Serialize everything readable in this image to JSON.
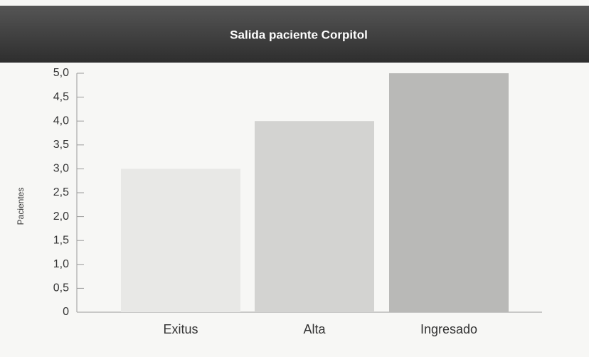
{
  "chart_data": {
    "type": "bar",
    "title": "Salida paciente Corpitol",
    "y_label": "Pacientes",
    "categories": [
      "Exitus",
      "Alta",
      "Ingresado"
    ],
    "values": [
      3,
      4,
      5
    ],
    "colors": [
      "#e8e8e6",
      "#d3d3d1",
      "#b9b9b7"
    ],
    "ylim": [
      0,
      5
    ],
    "yticks": [
      0,
      {
        "value": 0.5,
        "label": "0,5"
      },
      {
        "value": 1,
        "label": "1,0"
      },
      {
        "value": 1.5,
        "label": "1,5"
      },
      {
        "value": 2,
        "label": "2,0"
      },
      {
        "value": 2.5,
        "label": "2,5"
      },
      {
        "value": 3,
        "label": "3,0"
      },
      {
        "value": 3.5,
        "label": "3,5"
      },
      {
        "value": 4,
        "label": "4,0"
      },
      {
        "value": 4.5,
        "label": "4,5"
      },
      {
        "value": 5,
        "label": "5,0"
      }
    ],
    "grid": false
  }
}
